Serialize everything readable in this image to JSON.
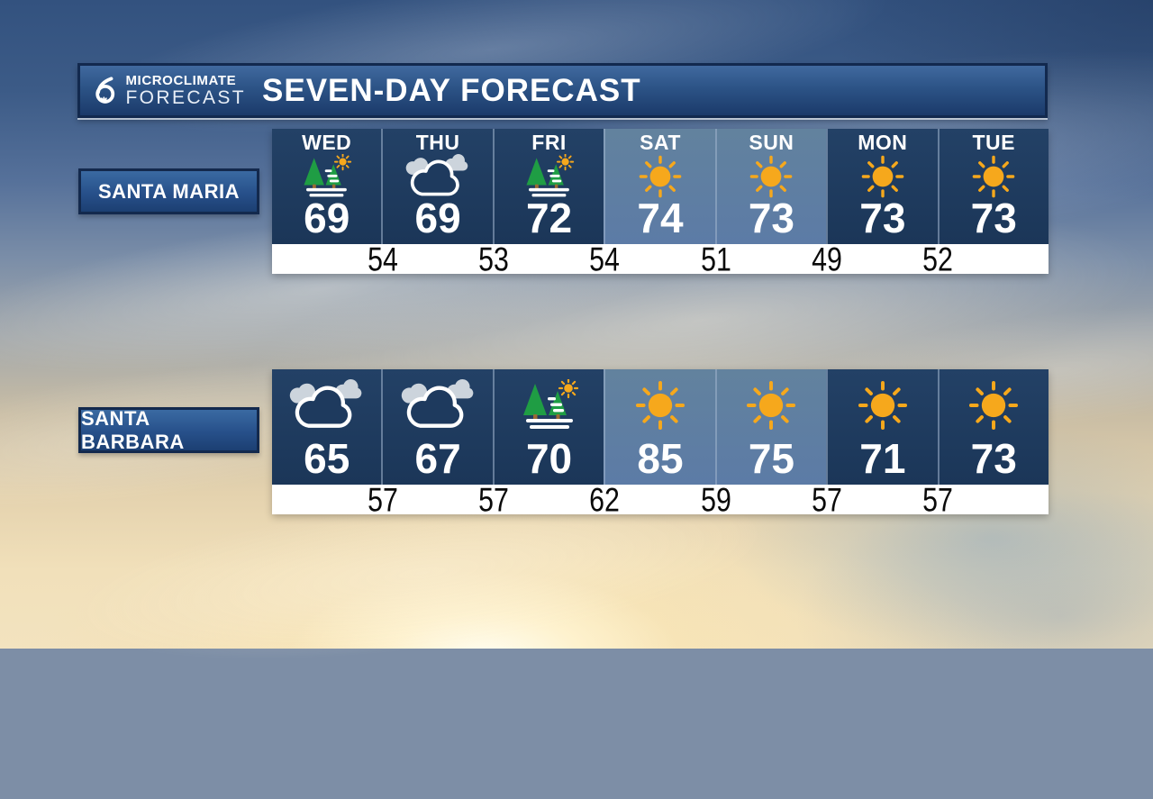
{
  "header": {
    "logo": {
      "station_number": "6",
      "line1": "MICROCLIMATE",
      "line2": "FORECAST"
    },
    "title": "SEVEN-DAY FORECAST"
  },
  "chart_data": {
    "type": "table",
    "title": "SEVEN-DAY FORECAST",
    "columns": [
      "WED",
      "THU",
      "FRI",
      "SAT",
      "SUN",
      "MON",
      "TUE"
    ],
    "rows": [
      {
        "location": "SANTA MARIA",
        "highs": [
          69,
          69,
          72,
          74,
          73,
          73,
          73
        ],
        "lows": [
          54,
          53,
          54,
          51,
          49,
          52
        ],
        "conditions": [
          "patchy-fog-then-sun",
          "cloudy",
          "patchy-fog-then-sun",
          "sunny",
          "sunny",
          "sunny",
          "sunny"
        ],
        "cell_shades": [
          "dark",
          "dark",
          "dark",
          "light",
          "light",
          "dark",
          "dark"
        ]
      },
      {
        "location": "SANTA BARBARA",
        "highs": [
          65,
          67,
          70,
          85,
          75,
          71,
          73
        ],
        "lows": [
          57,
          57,
          62,
          59,
          57,
          57
        ],
        "conditions": [
          "cloudy",
          "cloudy",
          "patchy-fog-then-sun",
          "sunny",
          "sunny",
          "sunny",
          "sunny"
        ],
        "cell_shades": [
          "dark",
          "dark",
          "dark",
          "light",
          "light",
          "dark",
          "dark"
        ]
      }
    ]
  },
  "colors": {
    "cell_dark": "#1e3a5e",
    "cell_light": "#5e7ea8",
    "sun": "#f6a81c",
    "tree_green": "#1f9d44",
    "trunk_brown": "#9a6b33",
    "cloud_gray": "#ccd4dc",
    "low_text": "#0a0a0a",
    "header_blue_top": "#40699f",
    "header_blue_bottom": "#1b3a6a"
  }
}
